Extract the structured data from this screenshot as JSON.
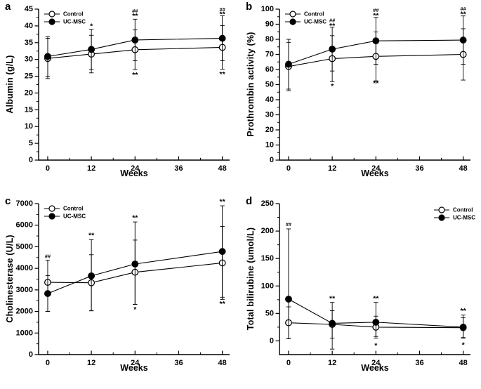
{
  "colors": {
    "ink": "#000000",
    "paper": "#ffffff"
  },
  "chart_data": [
    {
      "type": "line",
      "panel_label": "a",
      "ylabel": "Albumin (g/L)",
      "xlabel": "Weeks",
      "legend_position": "top-left",
      "x": [
        0,
        12,
        24,
        48
      ],
      "xticks": [
        0,
        12,
        24,
        36,
        48
      ],
      "xminor": [
        6,
        18,
        30,
        42
      ],
      "xlim": [
        -2.5,
        50
      ],
      "ylim": [
        0,
        45
      ],
      "ytick_step": 5,
      "grid": false,
      "series": [
        {
          "name": "Control",
          "marker": "open",
          "y": [
            30.3,
            31.6,
            32.9,
            33.6
          ],
          "err_lo": [
            6.0,
            5.6,
            5.9,
            6.5
          ],
          "err_hi": [
            6.0,
            5.6,
            5.9,
            6.5
          ]
        },
        {
          "name": "UC-MSC",
          "marker": "filled",
          "y": [
            30.9,
            33.0,
            35.8,
            36.3
          ],
          "err_lo": [
            5.9,
            6.0,
            6.2,
            6.7
          ],
          "err_hi": [
            5.9,
            6.0,
            6.2,
            6.7
          ]
        }
      ],
      "annotations": [
        {
          "x": 12,
          "y": 39.9,
          "text": "*"
        },
        {
          "x": 24,
          "y": 44.5,
          "text": "##"
        },
        {
          "x": 24,
          "y": 42.9,
          "text": "**"
        },
        {
          "x": 24,
          "y": 25.3,
          "text": "**"
        },
        {
          "x": 48,
          "y": 44.9,
          "text": "##"
        },
        {
          "x": 48,
          "y": 43.4,
          "text": "**"
        },
        {
          "x": 48,
          "y": 25.5,
          "text": "**"
        }
      ]
    },
    {
      "type": "line",
      "panel_label": "b",
      "ylabel": "Prothrombin activity (%)",
      "xlabel": "Weeks",
      "legend_position": "top-left",
      "x": [
        0,
        12,
        24,
        48
      ],
      "xticks": [
        0,
        12,
        24,
        36,
        48
      ],
      "xminor": [
        6,
        18,
        30,
        42
      ],
      "xlim": [
        -2.5,
        50
      ],
      "ylim": [
        0,
        100
      ],
      "ytick_step": 10,
      "grid": false,
      "series": [
        {
          "name": "Control",
          "marker": "open",
          "y": [
            62.0,
            67.2,
            68.7,
            70.0
          ],
          "err_lo": [
            16.0,
            15.2,
            16.2,
            17.0
          ],
          "err_hi": [
            16.0,
            15.2,
            16.2,
            17.0
          ]
        },
        {
          "name": "UC-MSC",
          "marker": "filled",
          "y": [
            63.5,
            73.5,
            79.0,
            79.5
          ],
          "err_lo": [
            16.5,
            14.5,
            15.5,
            16.0
          ],
          "err_hi": [
            16.5,
            14.5,
            15.5,
            16.0
          ]
        }
      ],
      "annotations": [
        {
          "x": 12,
          "y": 92.5,
          "text": "##"
        },
        {
          "x": 12,
          "y": 88.8,
          "text": "**"
        },
        {
          "x": 12,
          "y": 48.8,
          "text": "*"
        },
        {
          "x": 24,
          "y": 99.2,
          "text": "##"
        },
        {
          "x": 24,
          "y": 95.6,
          "text": "**"
        },
        {
          "x": 24,
          "y": 50.8,
          "text": "**"
        },
        {
          "x": 48,
          "y": 100.3,
          "text": "##"
        },
        {
          "x": 48,
          "y": 96.6,
          "text": "**"
        }
      ]
    },
    {
      "type": "line",
      "panel_label": "c",
      "ylabel": "Cholinesterase (U/L)",
      "xlabel": "Weeks",
      "legend_position": "top-left",
      "x": [
        0,
        12,
        24,
        48
      ],
      "xticks": [
        0,
        12,
        24,
        36,
        48
      ],
      "xminor": [
        6,
        18,
        30,
        42
      ],
      "xlim": [
        -2.5,
        50
      ],
      "ylim": [
        0,
        7000
      ],
      "ytick_step": 1000,
      "grid": false,
      "series": [
        {
          "name": "Control",
          "marker": "open",
          "y": [
            3350,
            3330,
            3820,
            4250
          ],
          "err_lo": [
            1350,
            1300,
            1490,
            1690
          ],
          "err_hi": [
            1030,
            1300,
            1490,
            1690
          ]
        },
        {
          "name": "UC-MSC",
          "marker": "filled",
          "y": [
            2830,
            3650,
            4200,
            4780
          ],
          "err_lo": [
            830,
            1620,
            1870,
            2120
          ],
          "err_hi": [
            830,
            1680,
            1950,
            2120
          ]
        }
      ],
      "annotations": [
        {
          "x": 0,
          "y": 4560,
          "text": "##"
        },
        {
          "x": 12,
          "y": 5520,
          "text": "**"
        },
        {
          "x": 24,
          "y": 6330,
          "text": "**"
        },
        {
          "x": 24,
          "y": 2090,
          "text": "*"
        },
        {
          "x": 48,
          "y": 7080,
          "text": "**"
        },
        {
          "x": 48,
          "y": 2350,
          "text": "**"
        }
      ]
    },
    {
      "type": "line",
      "panel_label": "d",
      "ylabel": "Total bilirubine (umol/L)",
      "xlabel": "Weeks",
      "legend_position": "top-right",
      "x": [
        0,
        12,
        24,
        48
      ],
      "xticks": [
        0,
        12,
        24,
        36,
        48
      ],
      "xminor": [
        6,
        18,
        30,
        42
      ],
      "xlim": [
        -2.5,
        50
      ],
      "ylim": [
        -25,
        250
      ],
      "ytick_step": 50,
      "grid": false,
      "series": [
        {
          "name": "Control",
          "marker": "open",
          "y": [
            33,
            30,
            25,
            24
          ],
          "err_lo": [
            29,
            25,
            20,
            18
          ],
          "err_hi": [
            29,
            25,
            20,
            18
          ]
        },
        {
          "name": "UC-MSC",
          "marker": "filled",
          "y": [
            76,
            32,
            34,
            25
          ],
          "err_lo": [
            72,
            47,
            26,
            20
          ],
          "err_hi": [
            128,
            38,
            36,
            22
          ]
        }
      ],
      "annotations": [
        {
          "x": 0,
          "y": 212,
          "text": "##"
        },
        {
          "x": 12,
          "y": 77,
          "text": "**"
        },
        {
          "x": 24,
          "y": 77,
          "text": "**"
        },
        {
          "x": 24,
          "y": -9,
          "text": "*"
        },
        {
          "x": 48,
          "y": 54,
          "text": "**"
        },
        {
          "x": 48,
          "y": -8,
          "text": "*"
        }
      ]
    }
  ]
}
